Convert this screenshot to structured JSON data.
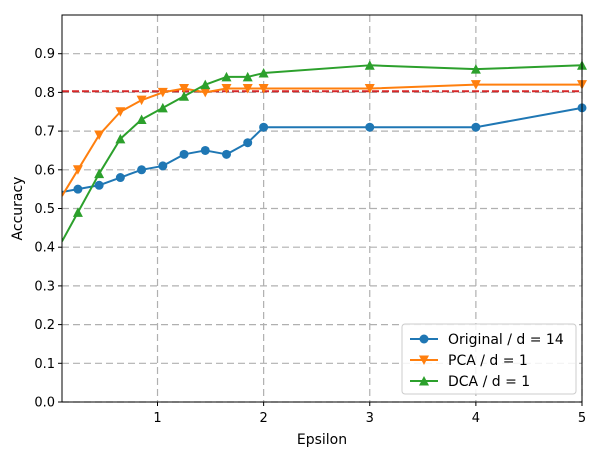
{
  "chart_data": {
    "type": "line",
    "xlabel": "Epsilon",
    "ylabel": "Accuracy",
    "xlim": [
      0.1,
      5.0
    ],
    "ylim": [
      0.0,
      1.0
    ],
    "xticks": [
      1,
      2,
      3,
      4,
      5
    ],
    "yticks": [
      0.0,
      0.1,
      0.2,
      0.3,
      0.4,
      0.5,
      0.6,
      0.7,
      0.8,
      0.9
    ],
    "ytick_labels": [
      "0.0",
      "0.1",
      "0.2",
      "0.3",
      "0.4",
      "0.5",
      "0.6",
      "0.7",
      "0.8",
      "0.9"
    ],
    "xtick_labels": [
      "1",
      "2",
      "3",
      "4",
      "5"
    ],
    "grid": true,
    "grid_style": "dashed",
    "legend_position": "bottom-right",
    "series": [
      {
        "name": "Original / d = 14",
        "color": "#1f77b4",
        "marker": "circle",
        "x": [
          0.25,
          0.45,
          0.65,
          0.85,
          1.05,
          1.25,
          1.45,
          1.65,
          1.85,
          2.0,
          3.0,
          4.0,
          5.0
        ],
        "y": [
          0.55,
          0.56,
          0.58,
          0.6,
          0.61,
          0.64,
          0.65,
          0.64,
          0.67,
          0.71,
          0.71,
          0.71,
          0.76
        ]
      },
      {
        "name": "PCA / d = 1",
        "color": "#ff7f0e",
        "marker": "triangle-down",
        "x": [
          0.25,
          0.45,
          0.65,
          0.85,
          1.05,
          1.25,
          1.45,
          1.65,
          1.85,
          2.0,
          3.0,
          4.0,
          5.0
        ],
        "y": [
          0.6,
          0.69,
          0.75,
          0.78,
          0.8,
          0.81,
          0.8,
          0.81,
          0.81,
          0.81,
          0.81,
          0.82,
          0.82
        ]
      },
      {
        "name": "DCA / d = 1",
        "color": "#2ca02c",
        "marker": "triangle-up",
        "x": [
          0.25,
          0.45,
          0.65,
          0.85,
          1.05,
          1.25,
          1.45,
          1.65,
          1.85,
          2.0,
          3.0,
          4.0,
          5.0
        ],
        "y": [
          0.49,
          0.59,
          0.68,
          0.73,
          0.76,
          0.79,
          0.82,
          0.84,
          0.84,
          0.85,
          0.87,
          0.86,
          0.87
        ]
      }
    ],
    "reference_lines": [
      {
        "orientation": "horizontal",
        "y": 0.803,
        "color": "#d62728",
        "style": "dashed"
      }
    ]
  }
}
